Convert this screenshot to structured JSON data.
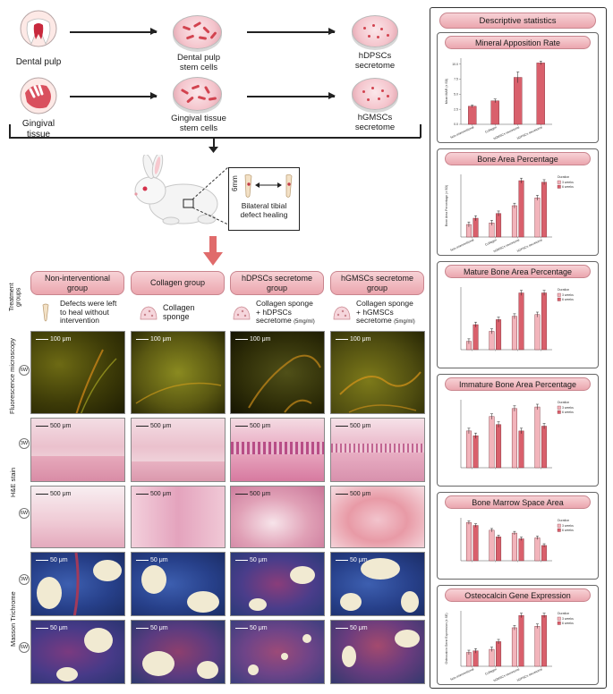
{
  "workflow": {
    "sources": [
      {
        "label": "Dental pulp",
        "cells": "Dental pulp\nstem cells",
        "secretome": "hDPSCs\nsecretome"
      },
      {
        "label": "Gingival\ntissue",
        "cells": "Gingival tissue\nstem cells",
        "secretome": "hGMSCs\nsecretome"
      }
    ],
    "defect": {
      "size_label": "6mm",
      "caption": "Bilateral tibial\ndefect healing"
    }
  },
  "treatment_groups_label": "Treatment\ngroups",
  "groups": [
    {
      "name": "Non-interventional\ngroup",
      "desc": "Defects were left\nto heal without\nintervention",
      "icon": "bone-icon"
    },
    {
      "name": "Collagen group",
      "desc": "Collagen\nsponge",
      "icon": "sponge-icon"
    },
    {
      "name": "hDPSCs secretome\ngroup",
      "desc": "Collagen sponge\n+ hDPSCs\nsecretome",
      "dose": "(5mg/ml)",
      "icon": "sponge-icon"
    },
    {
      "name": "hGMSCs secretome\ngroup",
      "desc": "Collagen sponge\n+ hGMSCs\nsecretome",
      "dose": "(5mg/ml)",
      "icon": "sponge-icon"
    }
  ],
  "rows": {
    "fluorescence": {
      "label": "Fluorescence microscopy",
      "week": "6W",
      "scale": "100 μm"
    },
    "he": {
      "label": "H&E stain",
      "weeks": [
        "3W",
        "6W"
      ],
      "scale": "500 μm"
    },
    "masson": {
      "label": "Masson Trichrome",
      "weeks": [
        "3W",
        "6W"
      ],
      "scale": "50 μm"
    }
  },
  "stats": {
    "title": "Descriptive statistics",
    "panels": [
      {
        "title": "Mineral Apposition Rate"
      },
      {
        "title": "Bone Area Percentage"
      },
      {
        "title": "Mature Bone Area Percentage"
      },
      {
        "title": "Immature Bone Area Percentage"
      },
      {
        "title": "Bone Marrow Space Area"
      },
      {
        "title": "Osteocalcin Gene Expression"
      }
    ]
  },
  "chart_data": [
    {
      "type": "bar",
      "title": "Mineral Apposition Rate",
      "ylabel": "Mean MAR (± SD)",
      "categories": [
        "Non-interventional",
        "Collagen",
        "hGMSCs secretome",
        "hDPSCs secretome"
      ],
      "values": [
        3.0,
        3.9,
        7.8,
        10.2
      ],
      "errors": [
        0.2,
        0.3,
        0.9,
        0.3
      ],
      "ylim": [
        0,
        11
      ],
      "yticks": [
        "0.0",
        "2.5",
        "5.0",
        "7.5",
        "10.0"
      ],
      "colors": [
        "#d9606c"
      ]
    },
    {
      "type": "bar",
      "title": "Bone Area Percentage",
      "ylabel": "Bone Area Percentage (± SD)",
      "legend_title": "Duration",
      "series": [
        {
          "name": "3 weeks",
          "values": [
            16,
            18,
            40,
            50
          ]
        },
        {
          "name": "6 weeks",
          "values": [
            24,
            30,
            72,
            70
          ]
        }
      ],
      "categories": [
        "Non-interventional",
        "Collagen",
        "hGMSCs secretome",
        "hDPSCs secretome"
      ],
      "ylim": [
        0,
        80
      ],
      "colors": [
        "#f2b4bb",
        "#d9606c"
      ]
    },
    {
      "type": "bar",
      "title": "Mature Bone Area Percentage",
      "legend_title": "Duration",
      "series": [
        {
          "name": "3 weeks",
          "values": [
            10,
            22,
            40,
            42
          ]
        },
        {
          "name": "6 weeks",
          "values": [
            30,
            36,
            68,
            68
          ]
        }
      ],
      "categories": [
        "",
        "",
        "",
        ""
      ],
      "ylim": [
        0,
        75
      ],
      "colors": [
        "#f2b4bb",
        "#d9606c"
      ]
    },
    {
      "type": "bar",
      "title": "Immature Bone Area Percentage",
      "legend_title": "Duration",
      "series": [
        {
          "name": "3 weeks",
          "values": [
            46,
            64,
            74,
            76
          ]
        },
        {
          "name": "6 weeks",
          "values": [
            40,
            54,
            46,
            52
          ]
        }
      ],
      "categories": [
        "",
        "",
        "",
        ""
      ],
      "ylim": [
        0,
        85
      ],
      "colors": [
        "#f2b4bb",
        "#d9606c"
      ]
    },
    {
      "type": "bar",
      "title": "Bone Marrow Space Area",
      "legend_title": "Duration",
      "series": [
        {
          "name": "3 weeks",
          "values": [
            40,
            32,
            29,
            24
          ]
        },
        {
          "name": "6 weeks",
          "values": [
            37,
            25,
            23,
            16
          ]
        }
      ],
      "categories": [
        "",
        "",
        "",
        ""
      ],
      "ylim": [
        0,
        45
      ],
      "colors": [
        "#f2b4bb",
        "#d9606c"
      ]
    },
    {
      "type": "bar",
      "title": "Osteocalcin Gene Expression",
      "ylabel": "Osteocalcin Gene Expression (± SE)",
      "legend_title": "Duration",
      "series": [
        {
          "name": "3 weeks",
          "values": [
            0.9,
            1.1,
            2.5,
            2.6
          ]
        },
        {
          "name": "6 weeks",
          "values": [
            1.0,
            1.6,
            3.3,
            3.3
          ]
        }
      ],
      "categories": [
        "Non-interventional",
        "Collagen",
        "hGMSCs secretome",
        "hDPSCs secretome"
      ],
      "ylim": [
        0,
        3.6
      ],
      "colors": [
        "#f2b4bb",
        "#d9606c"
      ]
    }
  ]
}
